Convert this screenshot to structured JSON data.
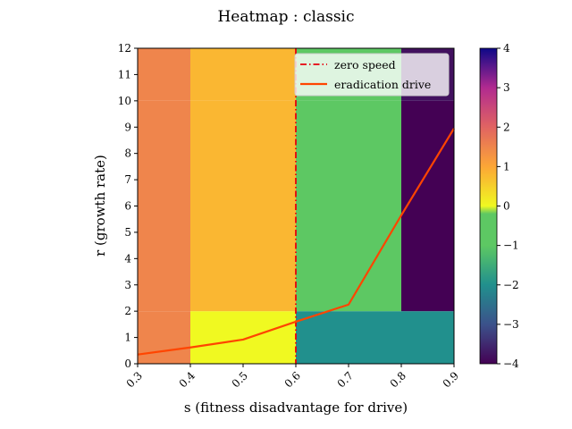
{
  "chart_data": {
    "type": "heatmap",
    "title": "Heatmap : classic",
    "xlabel": "s (fitness disadvantage for drive)",
    "ylabel": "r (growth rate)",
    "xlim": [
      0.3,
      0.9
    ],
    "ylim": [
      0,
      12
    ],
    "x_ticks": [
      "0.3",
      "0.4",
      "0.5",
      "0.6",
      "0.7",
      "0.8",
      "0.9"
    ],
    "y_ticks": [
      "0",
      "1",
      "2",
      "3",
      "4",
      "5",
      "6",
      "7",
      "8",
      "9",
      "10",
      "11",
      "12"
    ],
    "x_edges": [
      0.3,
      0.4,
      0.6,
      0.8,
      0.9
    ],
    "y_edges": [
      0,
      2,
      6,
      10,
      12
    ],
    "cells": [
      [
        1.5,
        0,
        -2,
        -2
      ],
      [
        1.5,
        0.8,
        -0.4,
        -4
      ],
      [
        1.5,
        0.8,
        -0.1,
        -4
      ],
      [
        1.5,
        0.8,
        -0.1,
        -3.8
      ]
    ],
    "colorbar": {
      "vmin": -4,
      "vmax": 4,
      "ticks": [
        "−4",
        "−3",
        "−2",
        "−1",
        "0",
        "1",
        "2",
        "3",
        "4"
      ]
    },
    "legend_position": "top-right",
    "series": [
      {
        "name": "zero speed",
        "kind": "vertical-line",
        "style": "dashdot",
        "color": "#e8000b",
        "x": 0.6
      },
      {
        "name": "eradication drive",
        "kind": "line",
        "color": "#ff4500",
        "x": [
          0.3,
          0.4,
          0.5,
          0.6,
          0.7,
          0.8,
          0.9
        ],
        "y": [
          0.35,
          0.62,
          0.92,
          1.6,
          2.25,
          5.65,
          8.95
        ]
      }
    ]
  }
}
